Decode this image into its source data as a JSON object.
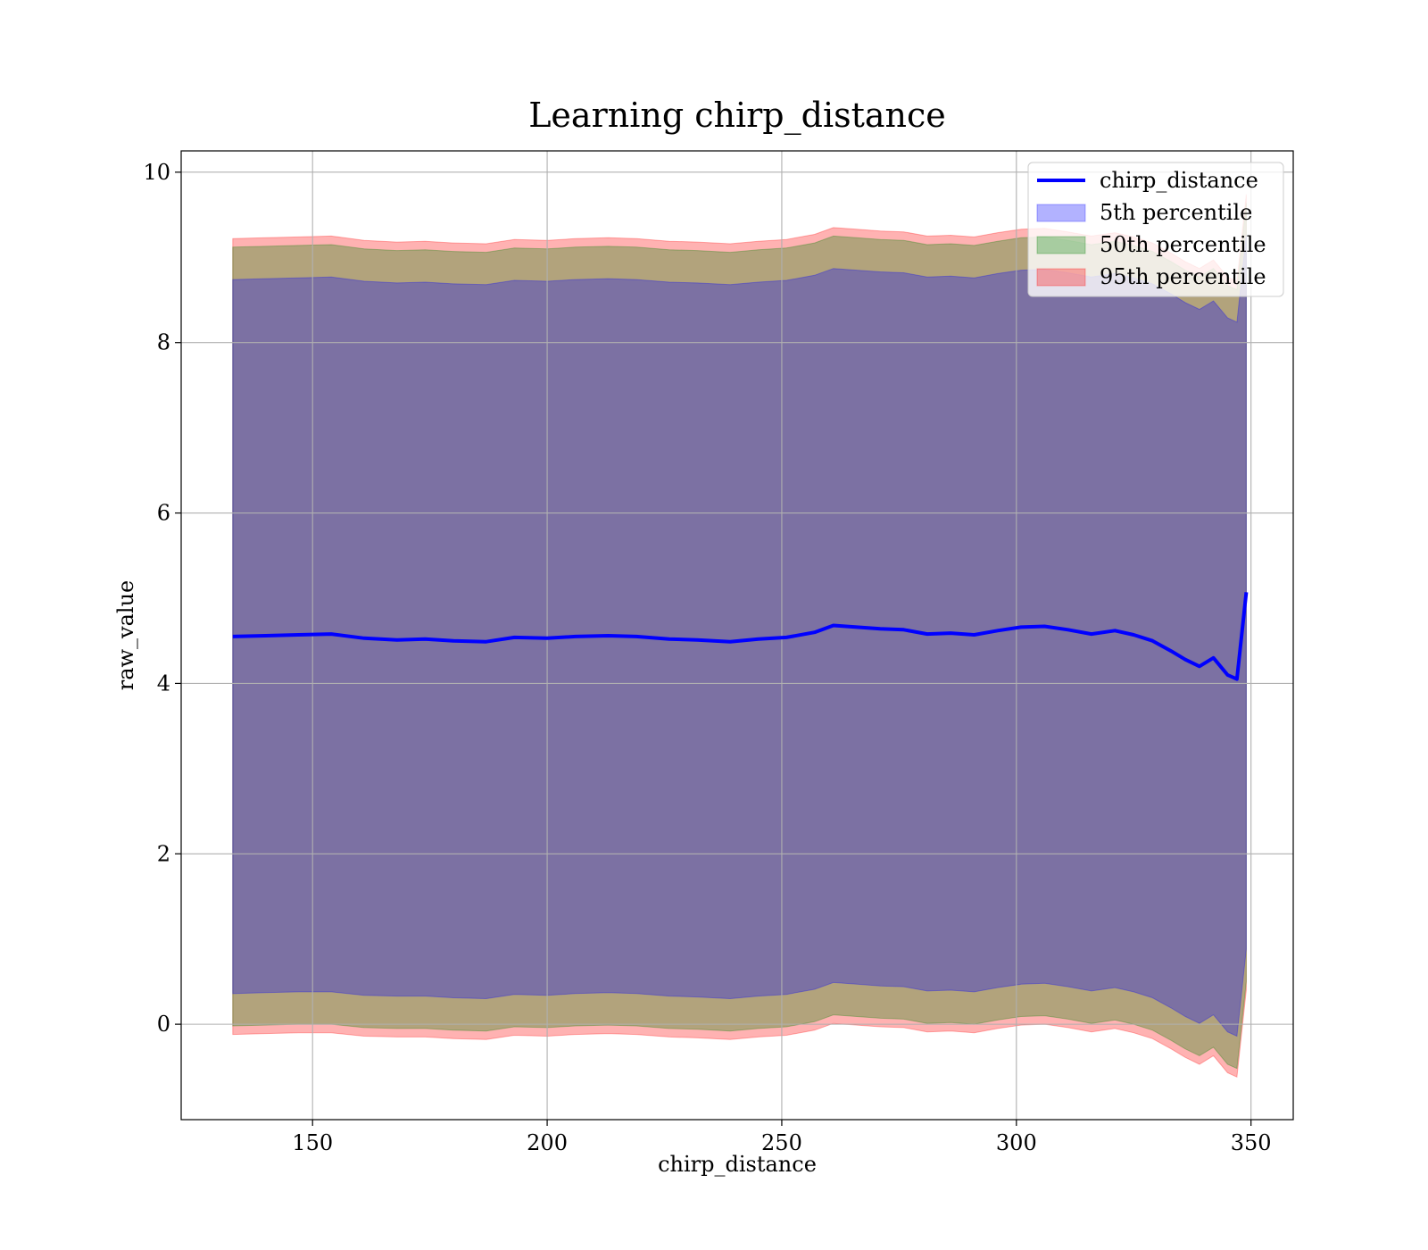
{
  "chart_data": {
    "type": "area",
    "title": "Learning chirp_distance",
    "xlabel": "chirp_distance",
    "ylabel": "raw_value",
    "xlim": [
      122,
      359
    ],
    "ylim": [
      -1.12,
      10.25
    ],
    "xticks": [
      150,
      200,
      250,
      300,
      350
    ],
    "yticks": [
      0,
      2,
      4,
      6,
      8,
      10
    ],
    "grid": true,
    "legend_position": "top-right",
    "x": [
      133,
      140,
      147,
      154,
      161,
      168,
      174,
      180,
      187,
      193,
      200,
      206,
      213,
      219,
      226,
      232,
      239,
      245,
      251,
      257,
      261,
      266,
      271,
      276,
      281,
      286,
      291,
      296,
      301,
      306,
      311,
      316,
      321,
      325,
      329,
      333,
      336,
      339,
      342,
      345,
      347,
      349
    ],
    "series": [
      {
        "name": "chirp_distance",
        "kind": "line",
        "color": "#0000ff",
        "values": [
          4.55,
          4.56,
          4.57,
          4.58,
          4.53,
          4.51,
          4.52,
          4.5,
          4.49,
          4.54,
          4.53,
          4.55,
          4.56,
          4.55,
          4.52,
          4.51,
          4.49,
          4.52,
          4.54,
          4.6,
          4.68,
          4.66,
          4.64,
          4.63,
          4.58,
          4.59,
          4.57,
          4.62,
          4.66,
          4.67,
          4.63,
          4.58,
          4.62,
          4.57,
          4.5,
          4.38,
          4.28,
          4.2,
          4.3,
          4.1,
          4.05,
          5.07
        ]
      },
      {
        "name": "5th percentile",
        "kind": "band",
        "color": "#0000ff",
        "lower": [
          0.36,
          0.37,
          0.38,
          0.38,
          0.34,
          0.33,
          0.33,
          0.31,
          0.3,
          0.35,
          0.34,
          0.36,
          0.37,
          0.36,
          0.33,
          0.32,
          0.3,
          0.33,
          0.35,
          0.41,
          0.49,
          0.47,
          0.45,
          0.44,
          0.39,
          0.4,
          0.38,
          0.43,
          0.47,
          0.48,
          0.44,
          0.39,
          0.43,
          0.38,
          0.31,
          0.19,
          0.09,
          0.01,
          0.11,
          -0.09,
          -0.14,
          0.88
        ],
        "upper": [
          8.74,
          8.75,
          8.76,
          8.77,
          8.72,
          8.7,
          8.71,
          8.69,
          8.68,
          8.73,
          8.72,
          8.74,
          8.75,
          8.74,
          8.71,
          8.7,
          8.68,
          8.71,
          8.73,
          8.79,
          8.87,
          8.85,
          8.83,
          8.82,
          8.77,
          8.78,
          8.76,
          8.81,
          8.85,
          8.86,
          8.82,
          8.77,
          8.81,
          8.76,
          8.69,
          8.57,
          8.47,
          8.39,
          8.49,
          8.29,
          8.24,
          9.26
        ]
      },
      {
        "name": "50th percentile",
        "kind": "band",
        "color": "#008000",
        "lower": [
          -0.02,
          -0.01,
          0.0,
          0.0,
          -0.04,
          -0.05,
          -0.05,
          -0.07,
          -0.08,
          -0.03,
          -0.04,
          -0.02,
          -0.01,
          -0.02,
          -0.05,
          -0.06,
          -0.08,
          -0.05,
          -0.03,
          0.03,
          0.11,
          0.09,
          0.07,
          0.06,
          0.01,
          0.02,
          0.0,
          0.05,
          0.09,
          0.1,
          0.06,
          0.01,
          0.05,
          0.0,
          -0.07,
          -0.19,
          -0.29,
          -0.37,
          -0.27,
          -0.47,
          -0.52,
          0.5
        ],
        "upper": [
          9.12,
          9.13,
          9.14,
          9.15,
          9.1,
          9.08,
          9.09,
          9.07,
          9.06,
          9.11,
          9.1,
          9.12,
          9.13,
          9.12,
          9.09,
          9.08,
          9.06,
          9.09,
          9.11,
          9.17,
          9.25,
          9.23,
          9.21,
          9.2,
          9.15,
          9.16,
          9.14,
          9.19,
          9.23,
          9.24,
          9.2,
          9.15,
          9.19,
          9.14,
          9.07,
          8.95,
          8.85,
          8.77,
          8.87,
          8.67,
          8.62,
          9.64
        ]
      },
      {
        "name": "95th percentile",
        "kind": "band",
        "color": "#ff0000",
        "lower": [
          -0.12,
          -0.11,
          -0.1,
          -0.1,
          -0.14,
          -0.15,
          -0.15,
          -0.17,
          -0.18,
          -0.13,
          -0.14,
          -0.12,
          -0.11,
          -0.12,
          -0.15,
          -0.16,
          -0.18,
          -0.15,
          -0.13,
          -0.07,
          0.01,
          -0.01,
          -0.03,
          -0.04,
          -0.09,
          -0.08,
          -0.1,
          -0.05,
          -0.01,
          0.0,
          -0.04,
          -0.09,
          -0.05,
          -0.1,
          -0.17,
          -0.29,
          -0.39,
          -0.47,
          -0.37,
          -0.57,
          -0.62,
          0.4
        ],
        "upper": [
          9.22,
          9.23,
          9.24,
          9.25,
          9.2,
          9.18,
          9.19,
          9.17,
          9.16,
          9.21,
          9.2,
          9.22,
          9.23,
          9.22,
          9.19,
          9.18,
          9.16,
          9.19,
          9.21,
          9.27,
          9.35,
          9.33,
          9.31,
          9.3,
          9.25,
          9.26,
          9.24,
          9.29,
          9.33,
          9.34,
          9.3,
          9.25,
          9.29,
          9.24,
          9.17,
          9.05,
          8.95,
          8.87,
          8.97,
          8.77,
          8.72,
          9.74
        ]
      }
    ]
  }
}
